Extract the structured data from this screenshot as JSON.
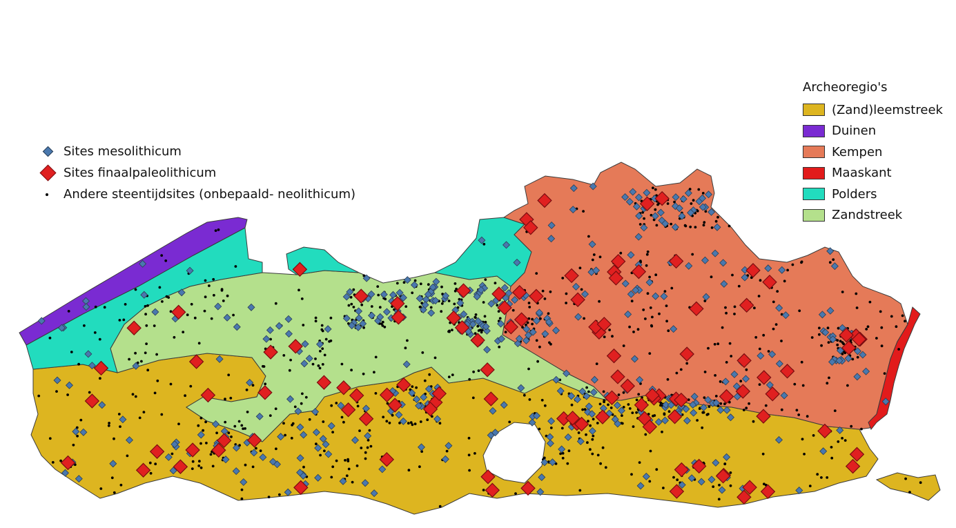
{
  "map": {
    "regions": [
      {
        "name": "(Zand)leemstreek",
        "color": "#ddb520"
      },
      {
        "name": "Duinen",
        "color": "#7a2bd2"
      },
      {
        "name": "Kempen",
        "color": "#e57a58"
      },
      {
        "name": "Maaskant",
        "color": "#e21b1b"
      },
      {
        "name": "Polders",
        "color": "#22dcbe"
      },
      {
        "name": "Zandstreek",
        "color": "#b4e08c"
      }
    ],
    "outline_color": "#3a3a3a"
  },
  "legend_sites": {
    "items": [
      {
        "label": "Sites mesolithicum",
        "symbol": "small-diamond",
        "color": "#4a78ae"
      },
      {
        "label": "Sites finaalpaleolithicum",
        "symbol": "large-diamond",
        "color": "#e02020"
      },
      {
        "label": "Andere steentijdsites (onbepaald- neolithicum)",
        "symbol": "dot",
        "color": "#000000"
      }
    ]
  },
  "legend_regions": {
    "title": "Archeoregio's",
    "items": [
      {
        "label": "(Zand)leemstreek",
        "color": "#ddb520"
      },
      {
        "label": "Duinen",
        "color": "#7a2bd2"
      },
      {
        "label": "Kempen",
        "color": "#e57a58"
      },
      {
        "label": "Maaskant",
        "color": "#e21b1b"
      },
      {
        "label": "Polders",
        "color": "#22dcbe"
      },
      {
        "label": "Zandstreek",
        "color": "#b4e08c"
      }
    ]
  }
}
